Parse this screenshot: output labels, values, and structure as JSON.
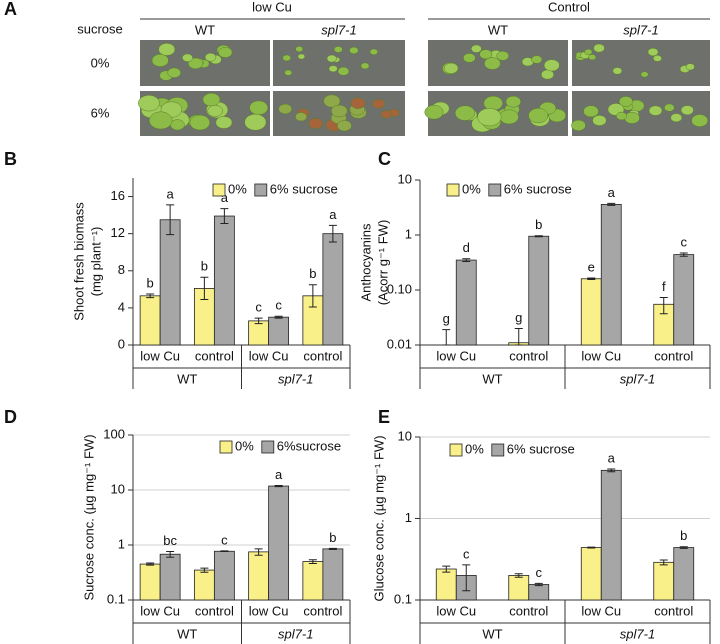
{
  "panel_a": {
    "panel_label": "A",
    "row_header": "sucrose",
    "rows": [
      "0%",
      "6%"
    ],
    "conditions": [
      {
        "label": "low Cu",
        "genotypes": [
          "WT",
          "spl7-1"
        ]
      },
      {
        "label": "Control",
        "genotypes": [
          "WT",
          "spl7-1"
        ]
      }
    ]
  },
  "chart_data": [
    {
      "type": "bar",
      "panel_label": "B",
      "ylabel": [
        "Shoot fresh biomass",
        "(mg plant⁻¹)"
      ],
      "log_scale": false,
      "grid": false,
      "legend": "upper right",
      "categories": [
        "low Cu",
        "control",
        "low Cu",
        "control"
      ],
      "groups": [
        "WT",
        "spl7-1"
      ],
      "ylim": [
        0,
        18
      ],
      "yticks": [
        0,
        4,
        8,
        12,
        16
      ],
      "series": [
        {
          "name": "0%",
          "color": "#f9f08a",
          "values": [
            5.3,
            6.1,
            2.6,
            5.3
          ],
          "errors": [
            0.2,
            1.2,
            0.3,
            1.2
          ],
          "letters": [
            "b",
            "b",
            "c",
            "b"
          ]
        },
        {
          "name": "6% sucrose",
          "color": "#a6a6a6",
          "values": [
            13.5,
            13.9,
            3.0,
            12.0
          ],
          "errors": [
            1.6,
            0.8,
            0.1,
            0.9
          ],
          "letters": [
            "a",
            "a",
            "c",
            "a"
          ]
        }
      ]
    },
    {
      "type": "bar",
      "panel_label": "C",
      "ylabel": [
        "Anthocyanins",
        "(Acorr g⁻¹ FW)"
      ],
      "log_scale": true,
      "grid": false,
      "legend": "upper left",
      "categories": [
        "low Cu",
        "control",
        "low Cu",
        "control"
      ],
      "groups": [
        "WT",
        "spl7-1"
      ],
      "ylim": [
        0.01,
        10
      ],
      "yticks": [
        0.01,
        {
          "value": 0.1,
          "label": "0.10"
        },
        1,
        10
      ],
      "series": [
        {
          "name": "0%",
          "color": "#f9f08a",
          "values": [
            0.008,
            0.011,
            0.16,
            0.055
          ],
          "errors": [
            0.011,
            0.009,
            0.005,
            0.018
          ],
          "letters": [
            "g",
            "g",
            "e",
            "f"
          ]
        },
        {
          "name": "6%  sucrose",
          "color": "#a6a6a6",
          "values": [
            0.35,
            0.95,
            3.6,
            0.44
          ],
          "errors": [
            0.02,
            0.02,
            0.15,
            0.03
          ],
          "letters": [
            "d",
            "b",
            "a",
            "c"
          ]
        }
      ]
    },
    {
      "type": "bar",
      "panel_label": "D",
      "ylabel": [
        "Sucrose conc. (µg mg⁻¹ FW)"
      ],
      "log_scale": true,
      "grid": true,
      "legend": "upper right",
      "categories": [
        "low Cu",
        "control",
        "low Cu",
        "control"
      ],
      "groups": [
        "WT",
        "spl7-1"
      ],
      "ylim": [
        0.1,
        100
      ],
      "yticks": [
        0.1,
        1,
        10,
        100
      ],
      "series": [
        {
          "name": "0%",
          "color": "#f9f08a",
          "values": [
            0.45,
            0.35,
            0.75,
            0.5
          ],
          "errors": [
            0.02,
            0.03,
            0.1,
            0.04
          ]
        },
        {
          "name": "6%sucrose",
          "color": "#a6a6a6",
          "values": [
            0.68,
            0.77,
            11.8,
            0.85
          ],
          "errors": [
            0.08,
            0.01,
            0.3,
            0.02
          ],
          "letters": [
            "bc",
            "c",
            "a",
            "b"
          ]
        }
      ]
    },
    {
      "type": "bar",
      "panel_label": "E",
      "ylabel": [
        "Glucose conc. (µg mg⁻¹ FW)"
      ],
      "log_scale": true,
      "grid": true,
      "legend": "upper left",
      "categories": [
        "low Cu",
        "control",
        "low Cu",
        "control"
      ],
      "groups": [
        "WT",
        "spl7-1"
      ],
      "ylim": [
        0.1,
        10
      ],
      "yticks": [
        0.1,
        1,
        10
      ],
      "series": [
        {
          "name": "0%",
          "color": "#f9f08a",
          "values": [
            0.24,
            0.2,
            0.44,
            0.29
          ],
          "errors": [
            0.02,
            0.01,
            0.005,
            0.02
          ]
        },
        {
          "name": "6%  sucrose",
          "color": "#a6a6a6",
          "values": [
            0.2,
            0.155,
            3.9,
            0.44
          ],
          "errors": [
            0.07,
            0.005,
            0.15,
            0.01
          ],
          "letters": [
            "c",
            "c",
            "a",
            "b"
          ]
        }
      ]
    }
  ]
}
